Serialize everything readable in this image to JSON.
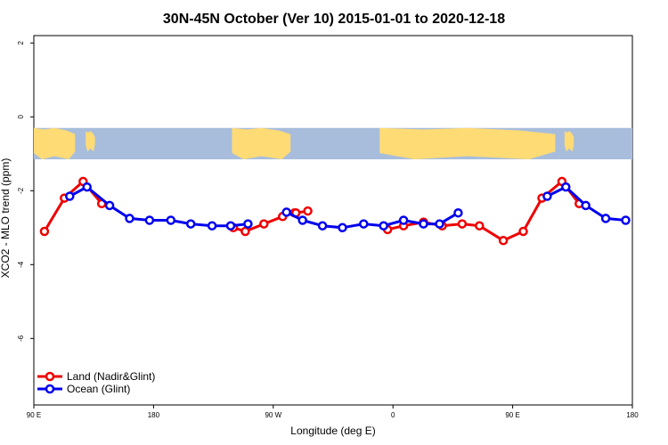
{
  "chart_data": {
    "type": "line",
    "title": "30N-45N October (Ver 10)   2015-01-01 to 2020-12-18",
    "xlabel": "Longitude (deg E)",
    "ylabel": "XCO2 - MLO trend (ppm)",
    "xlim": [
      90,
      540
    ],
    "ylim": [
      -7.8,
      2.2
    ],
    "x_ticks": [
      {
        "value": 90,
        "label": "90 E"
      },
      {
        "value": 180,
        "label": "180"
      },
      {
        "value": 270,
        "label": "90 W"
      },
      {
        "value": 360,
        "label": "0"
      },
      {
        "value": 450,
        "label": "90 E"
      },
      {
        "value": 540,
        "label": "180"
      }
    ],
    "y_ticks": [
      {
        "value": 2,
        "label": "2"
      },
      {
        "value": 0,
        "label": "0"
      },
      {
        "value": -2,
        "label": "-2"
      },
      {
        "value": -4,
        "label": "-4"
      },
      {
        "value": -6,
        "label": "-6"
      }
    ],
    "map_strip": {
      "y_range": [
        -1.15,
        -0.3
      ],
      "ocean_color": "#a8bddb",
      "land_color": "#fedb75"
    },
    "legend": {
      "position": "bottom-left"
    },
    "series": [
      {
        "name": "Land (Nadir&Glint)",
        "color": "#ee0000",
        "segments": [
          [
            [
              98,
              -3.1
            ],
            [
              113,
              -2.2
            ],
            [
              127,
              -1.75
            ],
            [
              141,
              -2.35
            ]
          ],
          [
            [
              240,
              -3.0
            ],
            [
              249,
              -3.1
            ],
            [
              263,
              -2.9
            ],
            [
              277,
              -2.7
            ],
            [
              286,
              -2.6
            ]
          ],
          [
            [
              287,
              -2.6
            ],
            [
              296,
              -2.55
            ]
          ],
          [
            [
              356,
              -3.05
            ],
            [
              368,
              -2.95
            ],
            [
              383,
              -2.85
            ],
            [
              397,
              -2.95
            ],
            [
              412,
              -2.9
            ],
            [
              425,
              -2.95
            ],
            [
              443,
              -3.35
            ],
            [
              458,
              -3.1
            ],
            [
              472,
              -2.2
            ],
            [
              487,
              -1.75
            ],
            [
              500,
              -2.35
            ]
          ]
        ]
      },
      {
        "name": "Ocean (Glint)",
        "color": "#0000ee",
        "segments": [
          [
            [
              117,
              -2.15
            ],
            [
              130,
              -1.9
            ],
            [
              147,
              -2.4
            ],
            [
              162,
              -2.75
            ],
            [
              177,
              -2.8
            ],
            [
              193,
              -2.8
            ],
            [
              208,
              -2.9
            ],
            [
              224,
              -2.95
            ],
            [
              238,
              -2.95
            ],
            [
              251,
              -2.9
            ]
          ],
          [
            [
              280,
              -2.58
            ],
            [
              292,
              -2.8
            ],
            [
              307,
              -2.95
            ],
            [
              322,
              -3.0
            ],
            [
              338,
              -2.9
            ],
            [
              353,
              -2.95
            ],
            [
              368,
              -2.8
            ],
            [
              383,
              -2.9
            ],
            [
              395,
              -2.9
            ],
            [
              409,
              -2.6
            ]
          ],
          [
            [
              476,
              -2.15
            ],
            [
              490,
              -1.9
            ],
            [
              505,
              -2.4
            ],
            [
              520,
              -2.75
            ],
            [
              535,
              -2.8
            ]
          ]
        ]
      }
    ]
  }
}
